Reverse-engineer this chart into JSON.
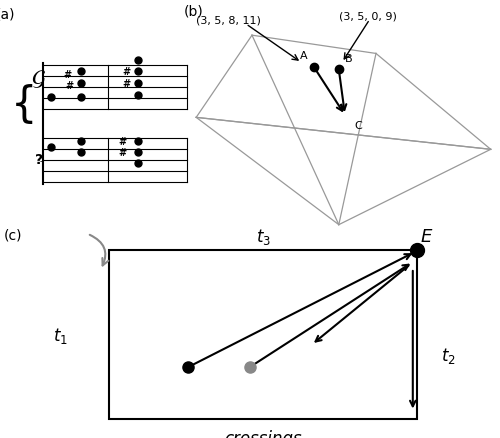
{
  "panel_a_label": "(a)",
  "panel_b_label": "(b)",
  "panel_c_label": "(c)",
  "tetra_label1": "(3, 5, 8, 11)",
  "tetra_label2": "(3, 5, 0, 9)",
  "point_A_label": "A",
  "point_B_label": "B",
  "point_C_label": "C",
  "box_label_t3": "$t_3$",
  "box_label_t1": "$t_1$",
  "box_label_t2": "$t_2$",
  "box_label_E": "E",
  "box_label_crossings": "crossings",
  "bg_color": "#ffffff",
  "line_color": "#000000",
  "gray_color": "#808080",
  "light_gray": "#aaaaaa"
}
